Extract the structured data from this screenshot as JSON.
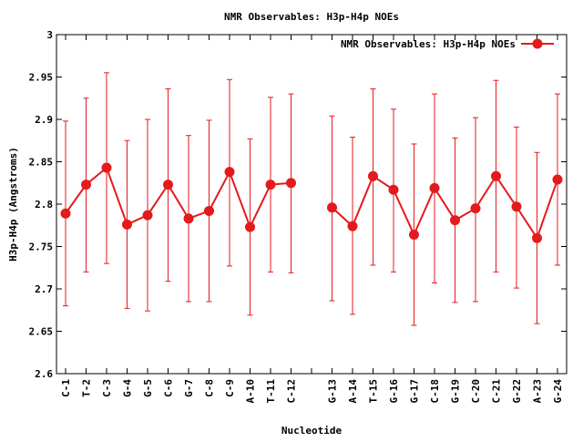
{
  "chart_data": {
    "type": "line",
    "title": "NMR Observables: H3p-H4p NOEs",
    "xlabel": "Nucleotide",
    "ylabel": "H3p-H4p (Angstroms)",
    "ylim": [
      2.6,
      3.0
    ],
    "yticks": [
      "2.6",
      "2.65",
      "2.7",
      "2.75",
      "2.8",
      "2.85",
      "2.9",
      "2.95",
      "3"
    ],
    "grid": false,
    "legend_position": "top-right",
    "line_color": "#e41a1c",
    "categories": [
      "C-1",
      "T-2",
      "C-3",
      "G-4",
      "G-5",
      "C-6",
      "G-7",
      "C-8",
      "C-9",
      "A-10",
      "T-11",
      "C-12",
      "",
      "G-13",
      "A-14",
      "T-15",
      "G-16",
      "G-17",
      "C-18",
      "G-19",
      "C-20",
      "C-21",
      "G-22",
      "A-23",
      "G-24"
    ],
    "series": [
      {
        "name": "NMR Observables: H3p-H4p NOEs",
        "values": [
          2.789,
          2.823,
          2.843,
          2.776,
          2.787,
          2.823,
          2.783,
          2.792,
          2.838,
          2.773,
          2.823,
          2.825,
          null,
          2.796,
          2.774,
          2.833,
          2.817,
          2.764,
          2.819,
          2.781,
          2.795,
          2.833,
          2.797,
          2.76,
          2.829
        ],
        "error_low": [
          2.68,
          2.72,
          2.73,
          2.677,
          2.674,
          2.709,
          2.685,
          2.685,
          2.727,
          2.669,
          2.72,
          2.719,
          null,
          2.686,
          2.67,
          2.728,
          2.72,
          2.657,
          2.707,
          2.684,
          2.685,
          2.72,
          2.701,
          2.659,
          2.728
        ],
        "error_high": [
          2.898,
          2.925,
          2.955,
          2.875,
          2.9,
          2.936,
          2.881,
          2.899,
          2.947,
          2.877,
          2.926,
          2.93,
          null,
          2.904,
          2.879,
          2.936,
          2.912,
          2.871,
          2.93,
          2.878,
          2.902,
          2.946,
          2.891,
          2.861,
          2.93
        ]
      }
    ]
  }
}
